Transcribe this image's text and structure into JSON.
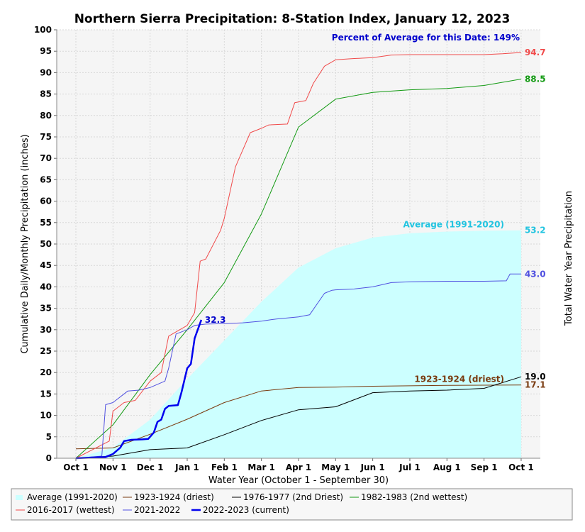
{
  "chart_data": {
    "type": "line",
    "title": "Northern Sierra Precipitation: 8-Station Index, January 12, 2023",
    "xlabel": "Water Year (October 1 - September 30)",
    "ylabel": "Cumulative Daily/Monthly Precipitation (inches)",
    "ylabel_right": "Total Water Year Precipitation",
    "ylim": [
      0,
      100
    ],
    "yticks": [
      0,
      5,
      10,
      15,
      20,
      25,
      30,
      35,
      40,
      45,
      50,
      55,
      60,
      65,
      70,
      75,
      80,
      85,
      90,
      95,
      100
    ],
    "x_ticks": [
      "Oct 1",
      "Nov 1",
      "Dec 1",
      "Jan 1",
      "Feb 1",
      "Mar 1",
      "Apr 1",
      "May 1",
      "Jun 1",
      "Jul 1",
      "Aug 1",
      "Sep 1",
      "Oct 1"
    ],
    "grid": true,
    "percent_note": "Percent of Average for this Date: 149%",
    "series": [
      {
        "name": "Average (1991-2020)",
        "kind": "area",
        "color": "#ccffff",
        "label_color": "#22c4e0",
        "end_label": "53.2",
        "inline_label": "Average (1991-2020)",
        "x": [
          0,
          1,
          2,
          3,
          4,
          5,
          6,
          7,
          8,
          9,
          10,
          11,
          12
        ],
        "y": [
          0,
          2.5,
          9,
          18.5,
          27.5,
          36.5,
          44.5,
          49,
          51.5,
          52.5,
          52.9,
          53.1,
          53.2
        ]
      },
      {
        "name": "1923-1924 (driest)",
        "kind": "line",
        "color": "#7a3b10",
        "label_color": "#7a3b10",
        "end_label": "17.1",
        "inline_label": "1923-1924 (driest)",
        "width": 1,
        "x": [
          0,
          1,
          2,
          3,
          4,
          5,
          6,
          7,
          8,
          9,
          10,
          11,
          12
        ],
        "y": [
          2.2,
          2.4,
          5.6,
          9.1,
          13,
          15.7,
          16.5,
          16.6,
          16.8,
          16.9,
          17.0,
          17.05,
          17.1
        ]
      },
      {
        "name": "1976-1977 (2nd Driest)",
        "kind": "line",
        "color": "#000000",
        "label_color": "#000000",
        "end_label": "19.0",
        "width": 1,
        "x": [
          0,
          1,
          2,
          3,
          4,
          5,
          6,
          7,
          8,
          9,
          10,
          11,
          12
        ],
        "y": [
          0,
          0.5,
          2,
          2.4,
          5.5,
          8.8,
          11.3,
          12,
          15.3,
          15.7,
          15.9,
          16.3,
          19.0
        ]
      },
      {
        "name": "1982-1983 (2nd wettest)",
        "kind": "line",
        "color": "#139a13",
        "label_color": "#139a13",
        "end_label": "88.5",
        "width": 1,
        "x": [
          0,
          1,
          2,
          3,
          4,
          5,
          6,
          7,
          8,
          9,
          10,
          11,
          12
        ],
        "y": [
          0,
          7.8,
          19.5,
          30,
          41,
          57,
          77.3,
          83.8,
          85.4,
          86,
          86.3,
          87,
          88.5
        ]
      },
      {
        "name": "2016-2017 (wettest)",
        "kind": "line",
        "color": "#f04a4a",
        "label_color": "#f04a4a",
        "end_label": "94.7",
        "width": 1,
        "x": [
          0,
          0.9,
          1.0,
          1.3,
          1.6,
          2.0,
          2.3,
          2.5,
          2.8,
          3.0,
          3.2,
          3.35,
          3.5,
          3.9,
          4.0,
          4.3,
          4.7,
          5.0,
          5.2,
          5.7,
          5.9,
          6.2,
          6.4,
          6.7,
          7.0,
          7.5,
          8.0,
          8.5,
          9.0,
          10.0,
          11.0,
          11.5,
          12.0
        ],
        "y": [
          0,
          4,
          11,
          13,
          13.5,
          18,
          20,
          28.5,
          30,
          31,
          34,
          46,
          46.5,
          53.2,
          56,
          68,
          76,
          77,
          77.8,
          78,
          83,
          83.5,
          87.5,
          91.5,
          93,
          93.3,
          93.5,
          94.1,
          94.2,
          94.2,
          94.2,
          94.4,
          94.7
        ]
      },
      {
        "name": "2021-2022",
        "kind": "line",
        "color": "#5050e0",
        "label_color": "#5050e0",
        "end_label": "43.0",
        "width": 1,
        "x": [
          0,
          0.7,
          0.8,
          1.0,
          1.4,
          1.7,
          2.0,
          2.4,
          2.5,
          2.7,
          3.0,
          3.2,
          3.5,
          4.0,
          4.5,
          5.0,
          5.4,
          6.0,
          6.3,
          6.5,
          6.7,
          6.9,
          7.0,
          7.5,
          8.0,
          8.5,
          9.0,
          10.0,
          11.0,
          11.6,
          11.7,
          12.0
        ],
        "y": [
          0,
          0.5,
          12.5,
          13,
          15.7,
          15.9,
          16.5,
          18,
          21,
          29,
          30,
          31,
          31.3,
          31.4,
          31.6,
          32,
          32.5,
          33,
          33.5,
          36,
          38.5,
          39.2,
          39.3,
          39.5,
          40,
          41,
          41.2,
          41.3,
          41.3,
          41.4,
          43.0,
          43.0
        ]
      },
      {
        "name": "2022-2023 (current)",
        "kind": "line",
        "color": "#0000ee",
        "label_color": "#0000cc",
        "end_label": "32.3",
        "width": 2.5,
        "x": [
          0,
          0.8,
          1.0,
          1.2,
          1.3,
          1.5,
          1.8,
          1.95,
          2.1,
          2.2,
          2.3,
          2.4,
          2.5,
          2.75,
          2.85,
          3.0,
          3.1,
          3.2,
          3.38
        ],
        "y": [
          0,
          0.3,
          1,
          2.5,
          4,
          4.3,
          4.4,
          4.5,
          6,
          8.5,
          9,
          11.5,
          12.2,
          12.4,
          15.5,
          21,
          22,
          28,
          32.3
        ]
      }
    ]
  }
}
